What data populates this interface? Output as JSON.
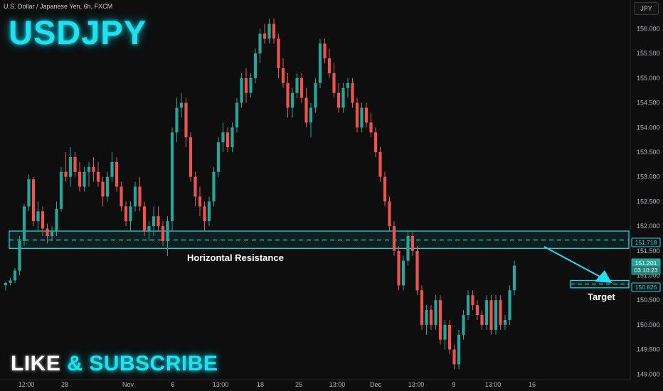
{
  "header": {
    "symbol_desc": "U.S. Dollar / Japanese Yen, 6h, FXCM",
    "symbol": "USDJPY",
    "currency_button": "JPY"
  },
  "promo": {
    "like": "LIKE",
    "amp": "&",
    "subscribe": "SUBSCRIBE"
  },
  "colors": {
    "up": "#26a69a",
    "down": "#ef5350",
    "accent": "#22e0ee",
    "bg": "#0e0e0e",
    "axis_text": "#b2b5be"
  },
  "chart_data": {
    "type": "candlestick",
    "ylim": [
      149.0,
      156.3
    ],
    "y_ticks": [
      "156.000",
      "155.500",
      "155.000",
      "154.500",
      "154.000",
      "153.500",
      "153.000",
      "152.500",
      "152.000",
      "151.500",
      "151.000",
      "150.500",
      "150.000",
      "149.500",
      "149.000"
    ],
    "x_ticks": [
      "12:00",
      "28",
      "Nov",
      "6",
      "13:00",
      "18",
      "25",
      "13:00",
      "Dec",
      "13:00",
      "9",
      "13:00",
      "16"
    ],
    "candles": [
      [
        150.8,
        150.88,
        150.7,
        150.85
      ],
      [
        150.85,
        150.95,
        150.8,
        150.9
      ],
      [
        150.9,
        151.15,
        150.85,
        151.1
      ],
      [
        151.1,
        151.8,
        151.0,
        151.7
      ],
      [
        151.7,
        152.45,
        151.6,
        152.4
      ],
      [
        152.4,
        153.05,
        152.3,
        152.95
      ],
      [
        152.95,
        153.0,
        152.0,
        152.1
      ],
      [
        152.1,
        152.5,
        151.9,
        152.3
      ],
      [
        152.3,
        152.4,
        151.8,
        151.95
      ],
      [
        151.95,
        152.05,
        151.65,
        151.8
      ],
      [
        151.8,
        152.0,
        151.7,
        151.9
      ],
      [
        151.9,
        152.5,
        151.8,
        152.35
      ],
      [
        152.35,
        153.2,
        152.3,
        153.1
      ],
      [
        153.1,
        153.5,
        152.9,
        153.0
      ],
      [
        153.0,
        153.6,
        152.8,
        153.4
      ],
      [
        153.4,
        153.5,
        153.0,
        153.1
      ],
      [
        153.1,
        153.3,
        152.7,
        152.8
      ],
      [
        152.8,
        153.2,
        152.7,
        153.1
      ],
      [
        153.1,
        153.3,
        152.8,
        153.2
      ],
      [
        153.2,
        153.4,
        152.9,
        153.1
      ],
      [
        153.1,
        153.3,
        152.8,
        152.9
      ],
      [
        152.9,
        153.0,
        152.4,
        152.6
      ],
      [
        152.6,
        153.1,
        152.5,
        153.0
      ],
      [
        153.0,
        153.5,
        152.9,
        153.3
      ],
      [
        153.3,
        153.4,
        152.7,
        152.8
      ],
      [
        152.8,
        152.9,
        152.3,
        152.4
      ],
      [
        152.4,
        152.5,
        152.0,
        152.1
      ],
      [
        152.1,
        152.5,
        151.9,
        152.4
      ],
      [
        152.4,
        152.9,
        152.3,
        152.8
      ],
      [
        152.8,
        153.0,
        152.3,
        152.4
      ],
      [
        152.4,
        152.5,
        151.8,
        151.9
      ],
      [
        151.9,
        152.1,
        151.7,
        152.0
      ],
      [
        152.0,
        152.4,
        151.8,
        152.2
      ],
      [
        152.2,
        152.4,
        151.9,
        152.0
      ],
      [
        152.0,
        152.1,
        151.6,
        151.7
      ],
      [
        151.7,
        152.2,
        151.4,
        152.1
      ],
      [
        152.1,
        154.0,
        151.9,
        153.9
      ],
      [
        153.9,
        154.6,
        153.7,
        154.4
      ],
      [
        154.4,
        154.7,
        154.2,
        154.5
      ],
      [
        154.5,
        154.6,
        153.6,
        153.8
      ],
      [
        153.8,
        153.9,
        152.9,
        153.0
      ],
      [
        153.0,
        153.1,
        152.4,
        152.6
      ],
      [
        152.6,
        152.8,
        152.2,
        152.4
      ],
      [
        152.4,
        152.5,
        151.9,
        152.1
      ],
      [
        152.1,
        152.6,
        152.0,
        152.5
      ],
      [
        152.5,
        153.2,
        152.4,
        153.1
      ],
      [
        153.1,
        153.8,
        153.0,
        153.7
      ],
      [
        153.7,
        154.1,
        153.5,
        153.9
      ],
      [
        153.9,
        154.0,
        153.5,
        153.6
      ],
      [
        153.6,
        154.1,
        153.5,
        154.0
      ],
      [
        154.0,
        154.6,
        153.9,
        154.5
      ],
      [
        154.5,
        155.1,
        154.4,
        155.0
      ],
      [
        155.0,
        155.2,
        154.5,
        154.7
      ],
      [
        154.7,
        155.1,
        154.6,
        155.0
      ],
      [
        155.0,
        155.6,
        154.9,
        155.5
      ],
      [
        155.5,
        156.0,
        155.3,
        155.9
      ],
      [
        155.9,
        156.1,
        155.7,
        155.8
      ],
      [
        155.8,
        156.2,
        155.7,
        156.1
      ],
      [
        156.1,
        156.2,
        155.7,
        155.8
      ],
      [
        155.8,
        155.9,
        155.0,
        155.2
      ],
      [
        155.2,
        155.4,
        154.8,
        154.9
      ],
      [
        154.9,
        155.1,
        154.2,
        154.4
      ],
      [
        154.4,
        154.8,
        154.2,
        154.7
      ],
      [
        154.7,
        155.1,
        154.6,
        155.0
      ],
      [
        155.0,
        155.1,
        154.5,
        154.6
      ],
      [
        154.6,
        154.8,
        154.0,
        154.1
      ],
      [
        154.1,
        154.5,
        153.8,
        154.4
      ],
      [
        154.4,
        155.0,
        154.3,
        154.9
      ],
      [
        154.9,
        155.8,
        154.8,
        155.7
      ],
      [
        155.7,
        155.8,
        155.3,
        155.4
      ],
      [
        155.4,
        155.6,
        155.0,
        155.1
      ],
      [
        155.1,
        155.3,
        154.6,
        154.7
      ],
      [
        154.7,
        154.9,
        154.3,
        154.4
      ],
      [
        154.4,
        154.9,
        154.3,
        154.8
      ],
      [
        154.8,
        155.0,
        154.6,
        154.9
      ],
      [
        154.9,
        155.0,
        154.4,
        154.5
      ],
      [
        154.5,
        154.6,
        153.9,
        154.0
      ],
      [
        154.0,
        154.5,
        153.9,
        154.4
      ],
      [
        154.4,
        154.5,
        154.0,
        154.1
      ],
      [
        154.1,
        154.3,
        153.8,
        153.9
      ],
      [
        153.9,
        154.0,
        153.4,
        153.5
      ],
      [
        153.5,
        153.6,
        152.9,
        153.0
      ],
      [
        153.0,
        153.1,
        152.4,
        152.5
      ],
      [
        152.5,
        152.6,
        151.9,
        152.0
      ],
      [
        152.0,
        152.1,
        151.4,
        151.5
      ],
      [
        151.5,
        151.6,
        150.7,
        150.8
      ],
      [
        150.8,
        151.4,
        150.7,
        151.3
      ],
      [
        151.3,
        151.9,
        151.2,
        151.8
      ],
      [
        151.8,
        151.9,
        151.4,
        151.5
      ],
      [
        151.5,
        151.6,
        150.6,
        150.7
      ],
      [
        150.7,
        150.8,
        149.9,
        150.0
      ],
      [
        150.0,
        150.4,
        149.8,
        150.3
      ],
      [
        150.3,
        150.4,
        149.9,
        150.0
      ],
      [
        150.0,
        150.6,
        149.9,
        150.5
      ],
      [
        150.5,
        150.6,
        149.6,
        149.7
      ],
      [
        149.7,
        150.1,
        149.5,
        150.0
      ],
      [
        150.0,
        150.1,
        149.4,
        149.5
      ],
      [
        149.5,
        149.6,
        149.1,
        149.2
      ],
      [
        149.2,
        149.9,
        149.1,
        149.8
      ],
      [
        149.8,
        150.3,
        149.7,
        150.2
      ],
      [
        150.2,
        150.7,
        150.1,
        150.6
      ],
      [
        150.6,
        150.7,
        150.3,
        150.4
      ],
      [
        150.4,
        150.5,
        150.1,
        150.2
      ],
      [
        150.2,
        150.3,
        149.9,
        150.0
      ],
      [
        150.0,
        150.6,
        149.9,
        150.5
      ],
      [
        150.5,
        150.6,
        149.8,
        149.9
      ],
      [
        149.9,
        150.6,
        149.8,
        150.5
      ],
      [
        150.5,
        150.6,
        149.9,
        150.0
      ],
      [
        150.0,
        150.2,
        149.9,
        150.1
      ],
      [
        150.1,
        150.8,
        150.0,
        150.7
      ],
      [
        150.7,
        151.3,
        150.6,
        151.2
      ]
    ],
    "zones": [
      {
        "name": "resistance",
        "low": 151.55,
        "high": 151.9,
        "label": "Horizontal Resistance"
      },
      {
        "name": "target",
        "low": 150.75,
        "high": 150.9,
        "label": "Target"
      }
    ],
    "levels": [
      {
        "value": 151.718,
        "label": "151.718",
        "color": "#22e0ee",
        "text_color": "#22e0ee",
        "bg": "#0e0e0e",
        "border": "#22e0ee"
      },
      {
        "value": 151.201,
        "label": "151.201",
        "color": "#26a69a",
        "text_color": "#ffffff",
        "bg": "#26a69a",
        "border": "#26a69a"
      },
      {
        "value": 151.05,
        "label": "03:10:23",
        "color": "#26a69a",
        "text_color": "#ffffff",
        "bg": "#1e7e74",
        "border": "#26a69a"
      },
      {
        "value": 150.826,
        "label": "150.826",
        "color": "#22e0ee",
        "text_color": "#22e0ee",
        "bg": "#0e0e0e",
        "border": "#22e0ee"
      }
    ]
  }
}
